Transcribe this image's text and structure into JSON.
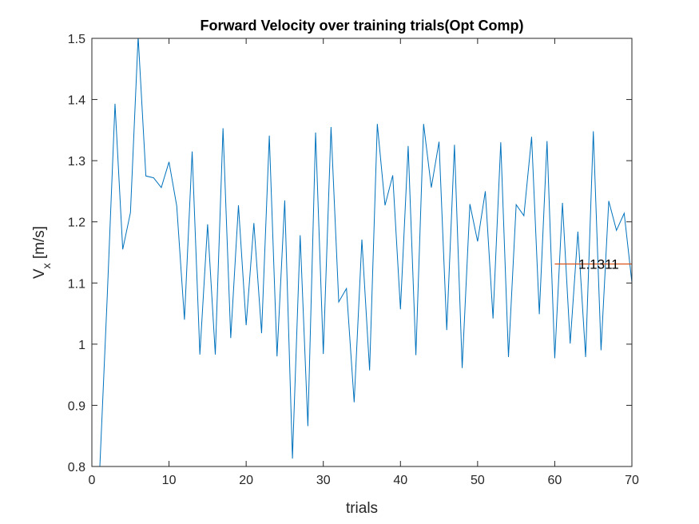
{
  "chart_data": {
    "type": "line",
    "title": "Forward Velocity over training trials(Opt Comp)",
    "xlabel": "trials",
    "ylabel_main": "V",
    "ylabel_sub": "x",
    "ylabel_unit": "[m/s]",
    "xlim": [
      0,
      70
    ],
    "ylim": [
      0.8,
      1.5
    ],
    "xticks": [
      0,
      10,
      20,
      30,
      40,
      50,
      60,
      70
    ],
    "yticks": [
      0.8,
      0.9,
      1,
      1.1,
      1.2,
      1.3,
      1.4,
      1.5
    ],
    "ytick_labels": [
      "0.8",
      "0.9",
      "1",
      "1.1",
      "1.2",
      "1.3",
      "1.4",
      "1.5"
    ],
    "grid": false,
    "series": [
      {
        "color": "#0072BD",
        "x": [
          1,
          2,
          3,
          4,
          5,
          6,
          7,
          8,
          9,
          10,
          11,
          12,
          13,
          14,
          15,
          16,
          17,
          18,
          19,
          20,
          21,
          22,
          23,
          24,
          25,
          26,
          27,
          28,
          29,
          30,
          31,
          32,
          33,
          34,
          35,
          36,
          37,
          38,
          39,
          40,
          41,
          42,
          43,
          44,
          45,
          46,
          47,
          48,
          49,
          50,
          51,
          52,
          53,
          54,
          55,
          56,
          57,
          58,
          59,
          60,
          61,
          62,
          63,
          64,
          65,
          66,
          67,
          68,
          69,
          70
        ],
        "y": [
          0.79,
          1.08,
          1.393,
          1.155,
          1.215,
          1.503,
          1.275,
          1.272,
          1.256,
          1.298,
          1.226,
          1.04,
          1.315,
          0.983,
          1.196,
          0.983,
          1.353,
          1.01,
          1.227,
          1.031,
          1.198,
          1.018,
          1.341,
          0.98,
          1.235,
          0.813,
          1.178,
          0.866,
          1.346,
          0.984,
          1.355,
          1.069,
          1.091,
          0.905,
          1.171,
          0.957,
          1.36,
          1.227,
          1.276,
          1.057,
          1.324,
          0.982,
          1.36,
          1.256,
          1.331,
          1.023,
          1.326,
          0.961,
          1.229,
          1.168,
          1.25,
          1.042,
          1.33,
          0.979,
          1.228,
          1.21,
          1.339,
          1.049,
          1.332,
          0.977,
          1.231,
          1.001,
          1.184,
          0.979,
          1.348,
          0.99,
          1.234,
          1.186,
          1.214,
          1.101
        ]
      }
    ],
    "reference_line": {
      "color": "#D95319",
      "x": [
        60,
        70
      ],
      "y": 1.1311,
      "label": "1.1311"
    }
  }
}
